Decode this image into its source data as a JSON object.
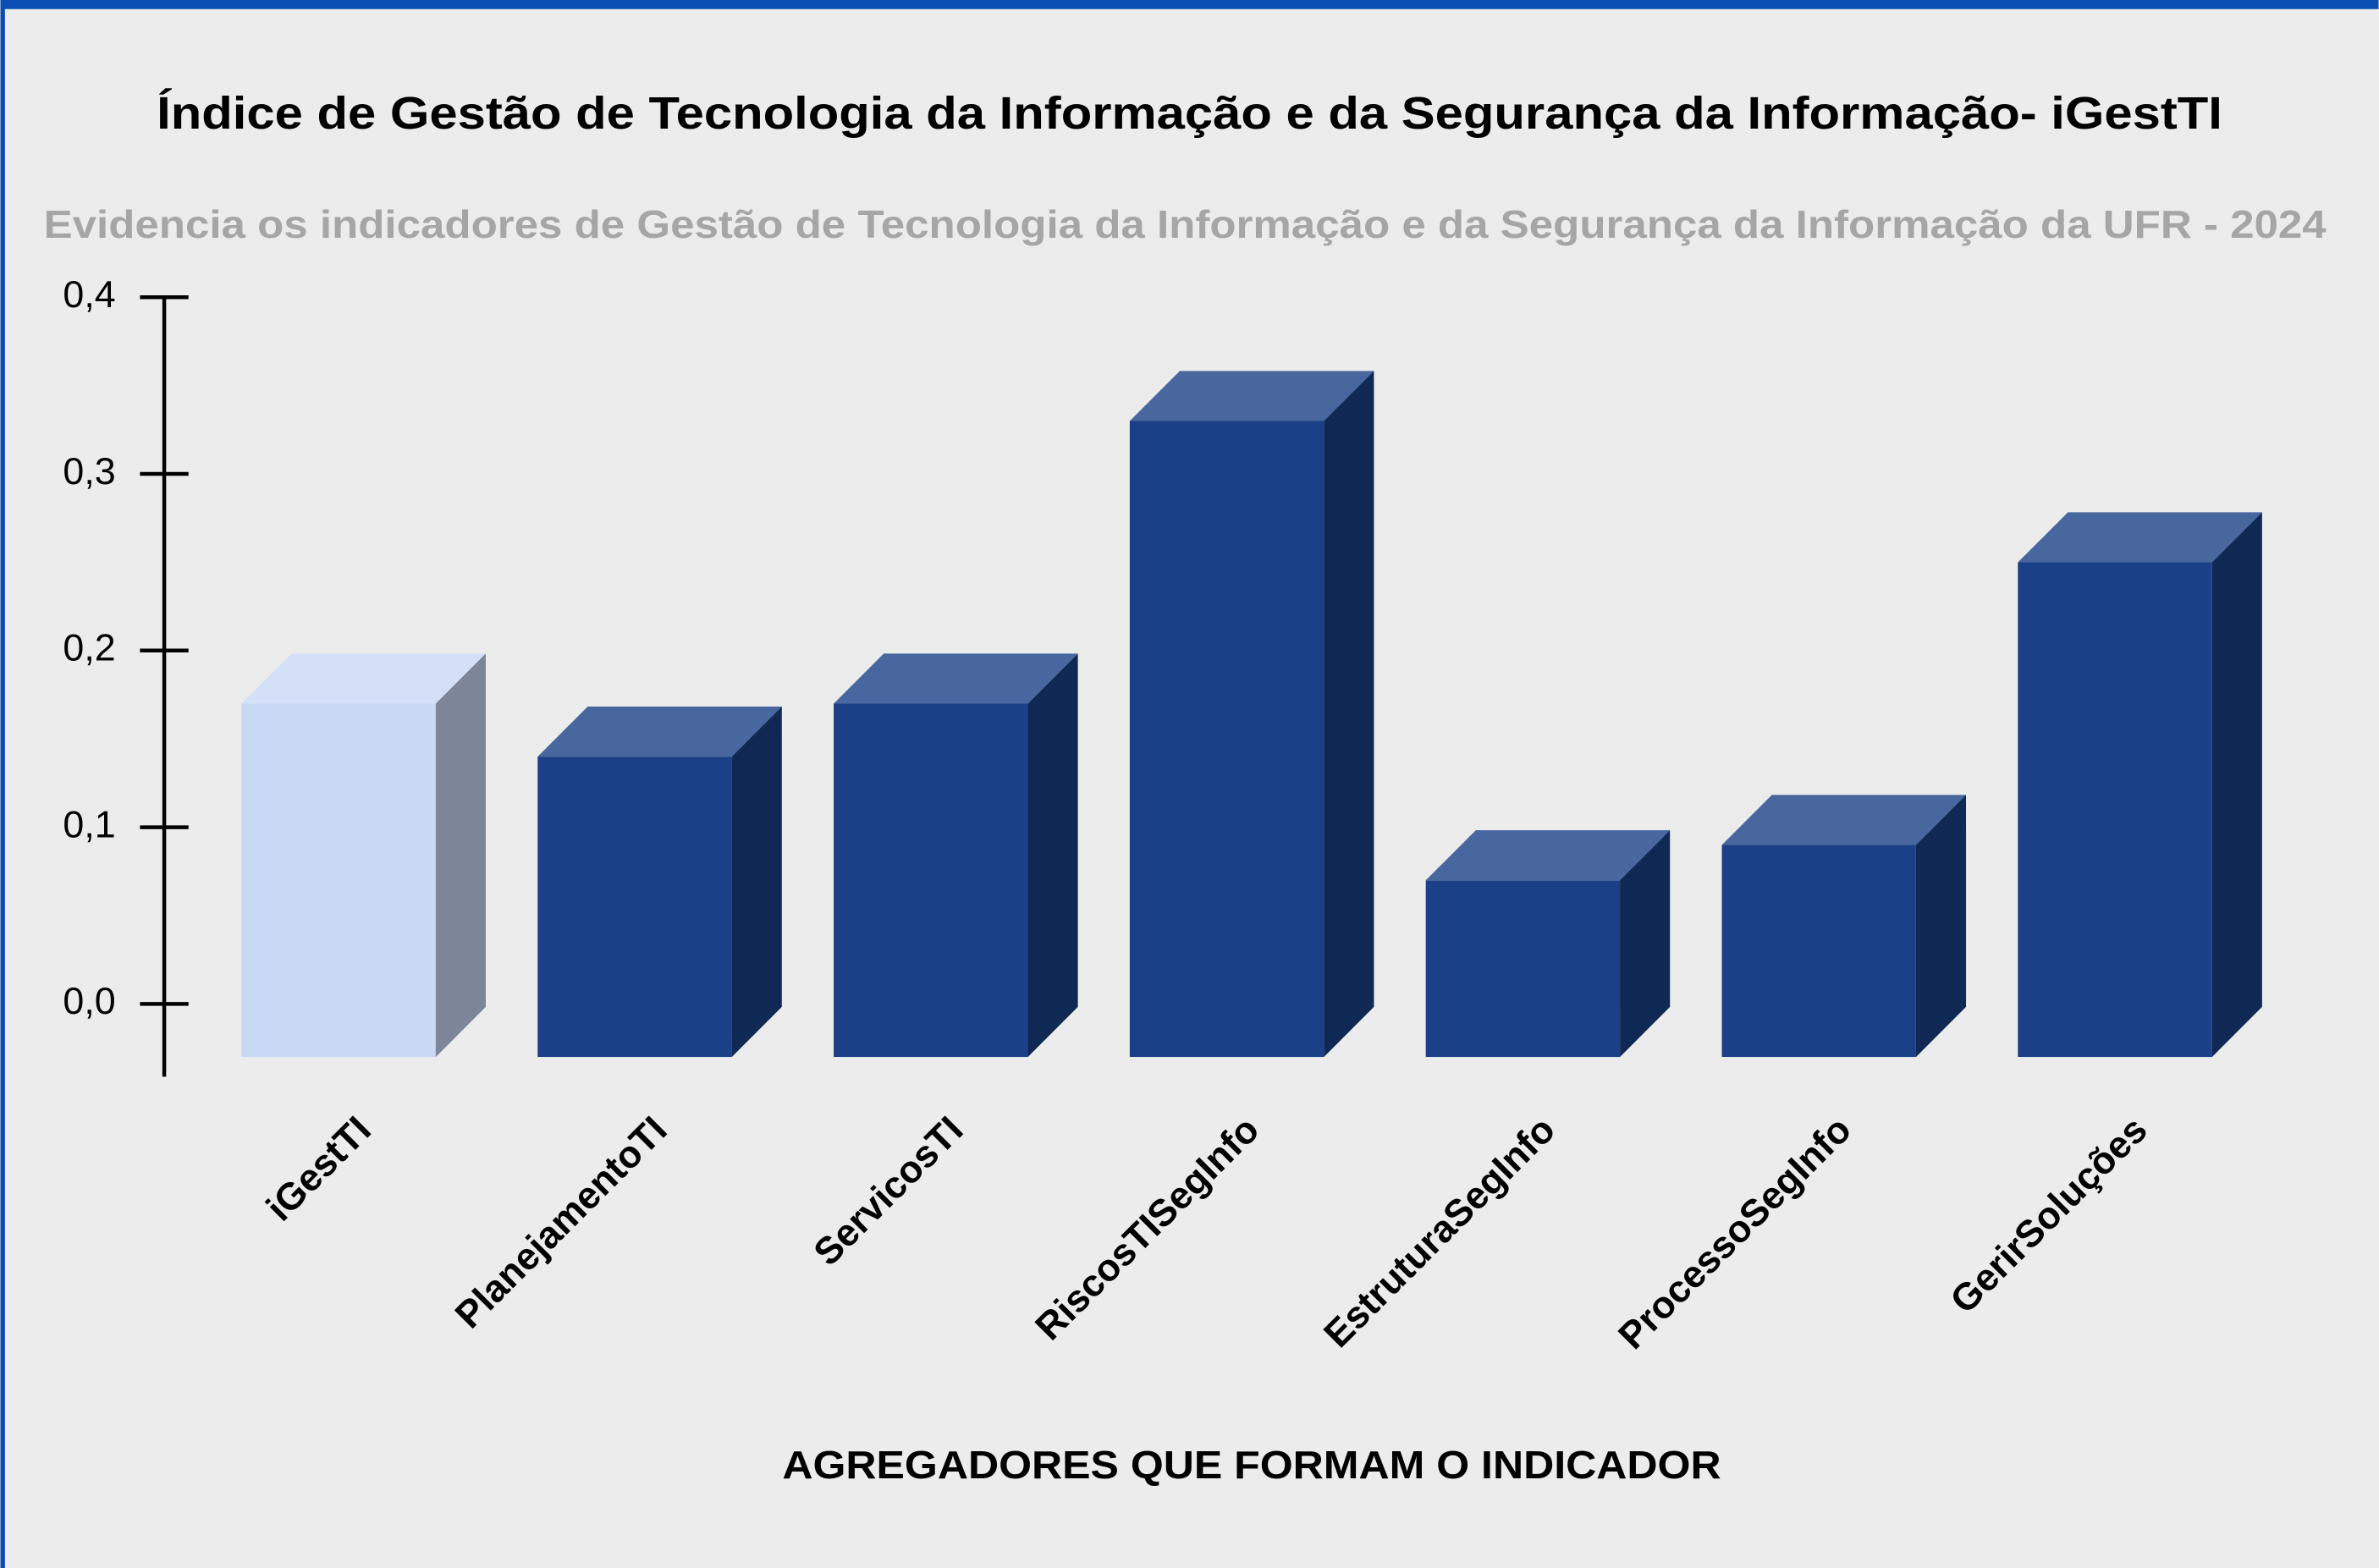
{
  "chart_data": {
    "type": "bar3d",
    "title": "Índice de Gestão de Tecnologia da Informação e da Segurança da Informação- iGestTI",
    "subtitle": "Evidencia os indicadores de Gestão de Tecnologia da Informação e da Segurança da Informação da UFR - 2024",
    "x_label": "AGREGADORES QUE FORMAM O INDICADOR",
    "categories": [
      "iGestTI",
      "PlanejamentoTI",
      "ServicosTI",
      "RiscosTISegInfo",
      "EstruturaSegInfo",
      "ProcessoSegInfo",
      "GerirSoluções"
    ],
    "values": [
      0.2,
      0.17,
      0.2,
      0.36,
      0.1,
      0.12,
      0.28
    ],
    "colors": [
      "#c9d8f5",
      "#1a4187",
      "#1a4187",
      "#1a4187",
      "#1a4187",
      "#1a4187",
      "#1a4187"
    ],
    "ylim": [
      0,
      0.4
    ],
    "yticks": [
      {
        "value": 0,
        "label": "0,0"
      },
      {
        "value": 0.1,
        "label": "0,1"
      },
      {
        "value": 0.2,
        "label": "0,2"
      },
      {
        "value": 0.3,
        "label": "0,3"
      },
      {
        "value": 0.4,
        "label": "0,4"
      }
    ]
  }
}
